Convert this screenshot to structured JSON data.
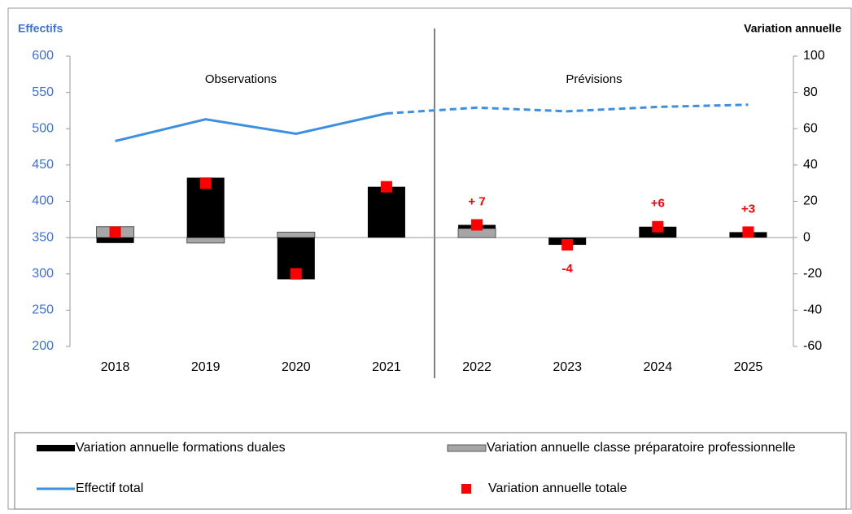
{
  "chart_data": {
    "type": "bar",
    "y_title": "Effectifs",
    "y2_title": "Variation annuelle",
    "annotations": [
      "Observations",
      "Prévisions"
    ],
    "categories": [
      "2018",
      "2019",
      "2020",
      "2021",
      "2022",
      "2023",
      "2024",
      "2025"
    ],
    "dashed_from": "2021",
    "ylim": [
      200,
      600
    ],
    "yticks": [
      200,
      250,
      300,
      350,
      400,
      450,
      500,
      550,
      600
    ],
    "y2lim": [
      -60,
      100
    ],
    "y2ticks": [
      -60,
      -40,
      -20,
      0,
      20,
      40,
      60,
      80,
      100
    ],
    "series": [
      {
        "name": "Variation annuelle formations duales",
        "type": "bar",
        "axis": "y2",
        "color": "#000000",
        "values": [
          -3,
          33,
          -23,
          28,
          2,
          -4,
          6,
          3
        ]
      },
      {
        "name": "Variation annuelle classe préparatoire professionnelle",
        "type": "bar",
        "axis": "y2",
        "color": "#a6a6a6",
        "values": [
          6,
          -3,
          3,
          0,
          5,
          0,
          0,
          0
        ]
      },
      {
        "name": "Effectif total",
        "type": "line",
        "axis": "y",
        "color": "#3d8fe0",
        "values": [
          483,
          513,
          493,
          521,
          529,
          524,
          530,
          533
        ]
      },
      {
        "name": "Variation annuelle totale",
        "type": "marker",
        "axis": "y2",
        "color": "#ff0000",
        "values": [
          3,
          30,
          -20,
          28,
          7,
          -4,
          6,
          3
        ],
        "value_labels": [
          null,
          null,
          null,
          null,
          "+ 7",
          "-4",
          "+6",
          "+3"
        ]
      }
    ]
  }
}
